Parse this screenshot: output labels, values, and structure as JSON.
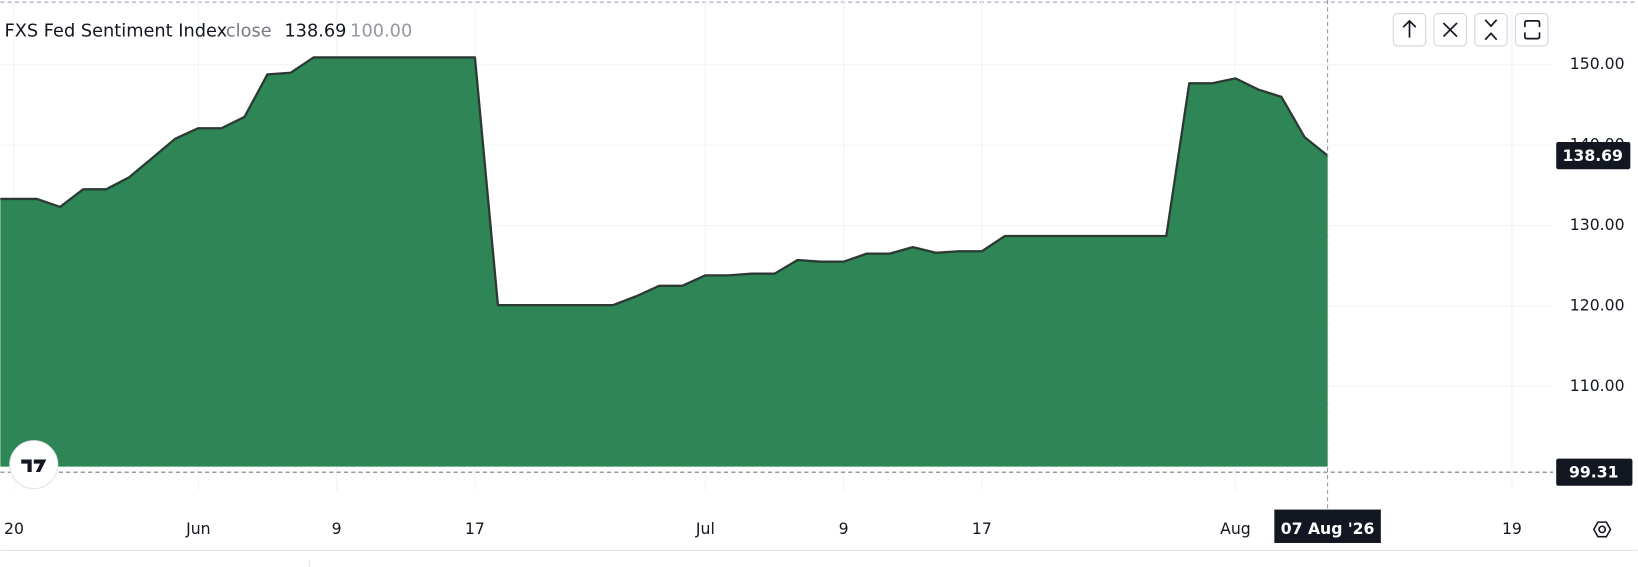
{
  "chart_data": {
    "type": "area",
    "title": "FXS Fed Sentiment Index",
    "subtitle": "close",
    "categories": [
      null,
      "20",
      null,
      null,
      null,
      null,
      null,
      null,
      null,
      "Jun",
      null,
      null,
      null,
      null,
      null,
      "9",
      null,
      null,
      null,
      null,
      null,
      "17",
      null,
      null,
      null,
      null,
      null,
      null,
      null,
      null,
      null,
      "Jul",
      null,
      null,
      null,
      null,
      null,
      "9",
      null,
      null,
      null,
      null,
      null,
      "17",
      null,
      null,
      null,
      null,
      null,
      null,
      null,
      null,
      null,
      null,
      "Aug",
      null,
      null,
      null,
      null,
      null,
      null,
      null,
      null,
      null,
      null,
      null,
      "19"
    ],
    "series": [
      {
        "name": "FXS Fed Sentiment Index",
        "color": "#2e8555",
        "line_color": "#2b3a33",
        "values": [
          133.3,
          133.3,
          133.3,
          132.3,
          134.5,
          134.5,
          136.0,
          138.4,
          140.8,
          142.1,
          142.1,
          143.5,
          148.8,
          149.0,
          150.9,
          150.9,
          150.9,
          150.9,
          150.9,
          150.9,
          150.9,
          150.9,
          120.1,
          120.1,
          120.1,
          120.1,
          120.1,
          120.1,
          121.2,
          122.5,
          122.5,
          123.8,
          123.8,
          124.0,
          124.0,
          125.7,
          125.5,
          125.5,
          126.5,
          126.5,
          127.3,
          126.6,
          126.8,
          126.8,
          128.7,
          128.7,
          128.7,
          128.7,
          128.7,
          128.7,
          128.7,
          128.7,
          147.7,
          147.7,
          148.3,
          146.9,
          146.0,
          141.0,
          138.69,
          null,
          null,
          null,
          null,
          null,
          null,
          null,
          null
        ]
      }
    ],
    "baseline": {
      "value": 100,
      "label": "100.00"
    },
    "dashed_level": 99.31,
    "crosshair_label": "07 Aug '26",
    "ylim": [
      97,
      158.05
    ],
    "yticks": [
      {
        "value": 110,
        "label": "110.00"
      },
      {
        "value": 120,
        "label": "120.00"
      },
      {
        "value": 130,
        "label": "130.00"
      },
      {
        "value": 140,
        "label": "140.00"
      },
      {
        "value": 150,
        "label": "150.00"
      }
    ],
    "grid": true
  }
}
